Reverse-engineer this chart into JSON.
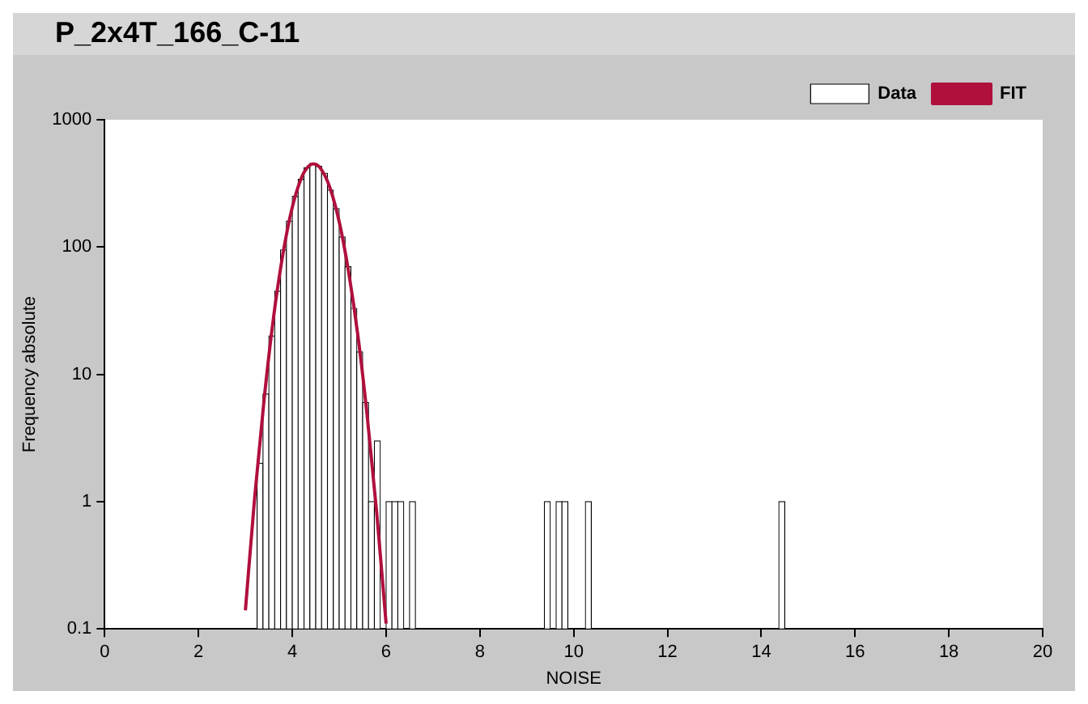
{
  "chart_data": {
    "type": "histogram",
    "title": "P_2x4T_166_C-11",
    "xlabel": "NOISE",
    "ylabel": "Frequency absolute",
    "log": "y",
    "legend": "top right",
    "xlim": [
      0,
      20
    ],
    "xticks": [
      0,
      2,
      4,
      6,
      8,
      10,
      12,
      14,
      16,
      18,
      20
    ],
    "ylim": [
      0.1,
      1000
    ],
    "yticks": [
      0.1,
      1,
      10,
      100,
      1000
    ],
    "series": [
      {
        "name": "Data",
        "color": "#000000",
        "bins": [
          3.25,
          3.375,
          3.5,
          3.625,
          3.75,
          3.875,
          4,
          4.125,
          4.25,
          4.375,
          4.5,
          4.625,
          4.75,
          4.875,
          5,
          5.125,
          5.25,
          5.375,
          5.5,
          5.625,
          5.75,
          5.875,
          6,
          6.125,
          6.25,
          6.375,
          6.5,
          6.625,
          6.75,
          6.875,
          7,
          7.125,
          7.25,
          7.375,
          7.5,
          7.625,
          7.75,
          7.875,
          8,
          8.125,
          8.25,
          8.375,
          8.5,
          8.625,
          8.75,
          8.875,
          9,
          9.125,
          9.25,
          9.375,
          9.5,
          9.625,
          9.75,
          9.875,
          10,
          10.125,
          10.25,
          10.375,
          10.5,
          10.625,
          10.75,
          10.875,
          11,
          11.125,
          11.25,
          11.375,
          11.5,
          11.625,
          11.75,
          11.875,
          12,
          12.125,
          12.25,
          12.375,
          12.5,
          12.625,
          12.75,
          12.875,
          13,
          13.125,
          13.25,
          13.375,
          13.5,
          13.625,
          13.75,
          13.875,
          14,
          14.125,
          14.25,
          14.375,
          14.5
        ],
        "values": [
          2,
          7,
          20,
          45,
          95,
          160,
          250,
          340,
          420,
          455,
          430,
          380,
          280,
          200,
          120,
          70,
          33,
          15,
          6,
          1,
          3,
          null,
          1,
          1,
          1,
          null,
          1,
          null,
          null,
          null,
          null,
          null,
          null,
          null,
          null,
          null,
          null,
          null,
          null,
          null,
          null,
          null,
          null,
          null,
          null,
          null,
          null,
          null,
          null,
          1,
          null,
          1,
          1,
          null,
          null,
          null,
          1,
          null,
          null,
          null,
          null,
          null,
          null,
          null,
          null,
          null,
          null,
          null,
          null,
          null,
          null,
          null,
          null,
          null,
          null,
          null,
          null,
          null,
          null,
          null,
          null,
          null,
          null,
          null,
          null,
          null,
          null,
          null,
          null,
          1
        ]
      },
      {
        "name": "FIT",
        "type": "line",
        "color": "#b0103c",
        "x": [
          3.0,
          3.2,
          3.4,
          3.6,
          3.8,
          4.0,
          4.2,
          4.3,
          4.45,
          4.6,
          4.8,
          5.0,
          5.2,
          5.4,
          5.6,
          5.8,
          6.0
        ],
        "values": [
          0.14,
          1.1,
          6.4,
          28,
          88,
          206,
          354,
          413,
          450,
          416,
          294,
          158,
          64,
          20,
          4.6,
          0.82,
          0.11
        ]
      }
    ]
  }
}
